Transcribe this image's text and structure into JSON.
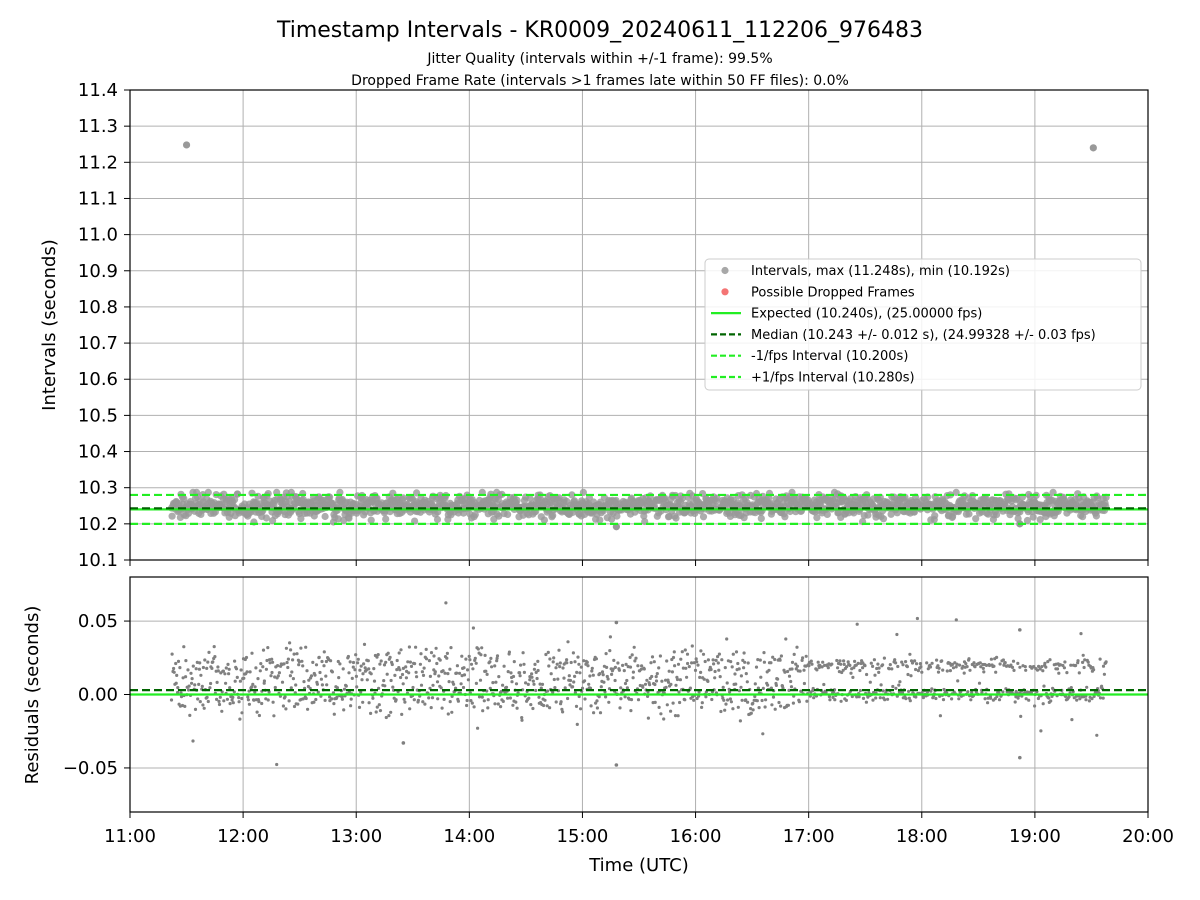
{
  "chart_data": [
    {
      "type": "scatter",
      "title": "Timestamp Intervals - KR0009_20240611_112206_976483",
      "subtitle_lines": [
        "Jitter Quality (intervals within +/-1 frame): 99.5%",
        "Dropped Frame Rate (intervals >1 frames late within 50 FF files): 0.0%"
      ],
      "xlabel": "",
      "ylabel": "Intervals (seconds)",
      "xlim": [
        "11:00",
        "20:00"
      ],
      "ylim": [
        10.1,
        11.4
      ],
      "yticks": [
        10.1,
        10.2,
        10.3,
        10.4,
        10.5,
        10.6,
        10.7,
        10.8,
        10.9,
        11.0,
        11.1,
        11.2,
        11.3,
        11.4
      ],
      "ytick_labels": [
        "10.1",
        "10.2",
        "10.3",
        "10.4",
        "10.5",
        "10.6",
        "10.7",
        "10.8",
        "10.9",
        "11.0",
        "11.1",
        "11.2",
        "11.3",
        "11.4"
      ],
      "grid": true,
      "legend_position": "center-right",
      "data_time_range": [
        "11:22",
        "19:38"
      ],
      "interval_band": {
        "center": 10.25,
        "low": 10.2,
        "high": 10.29
      },
      "outliers": [
        {
          "time": "11:30",
          "value": 11.248
        },
        {
          "time": "19:31",
          "value": 11.24
        },
        {
          "time": "15:18",
          "value": 10.192
        },
        {
          "time": "18:52",
          "value": 10.2
        }
      ],
      "series": [
        {
          "name": "Intervals, max (11.248s), min (10.192s)",
          "kind": "scatter",
          "color": "#999999"
        },
        {
          "name": "Possible Dropped Frames",
          "kind": "scatter",
          "color": "#f25c5c",
          "values": []
        },
        {
          "name": "Expected (10.240s), (25.00000 fps)",
          "kind": "hline",
          "value": 10.24,
          "color": "#22ee22",
          "style": "solid"
        },
        {
          "name": "Median (10.243 +/- 0.012 s), (24.99328 +/- 0.03 fps)",
          "kind": "hline",
          "value": 10.243,
          "color": "#006400",
          "style": "dashed"
        },
        {
          "name": "-1/fps Interval (10.200s)",
          "kind": "hline",
          "value": 10.2,
          "color": "#22ee22",
          "style": "dashed"
        },
        {
          "name": "+1/fps Interval (10.280s)",
          "kind": "hline",
          "value": 10.28,
          "color": "#22ee22",
          "style": "dashed"
        }
      ]
    },
    {
      "type": "scatter",
      "xlabel": "Time (UTC)",
      "ylabel": "Residuals (seconds)",
      "xlim": [
        "11:00",
        "20:00"
      ],
      "ylim": [
        -0.08,
        0.08
      ],
      "xticks": [
        "11:00",
        "12:00",
        "13:00",
        "14:00",
        "15:00",
        "16:00",
        "17:00",
        "18:00",
        "19:00",
        "20:00"
      ],
      "yticks": [
        0.05,
        0.0,
        -0.05
      ],
      "ytick_labels": [
        "0.05",
        "0.00",
        "−0.05"
      ],
      "grid": true,
      "data_time_range": [
        "11:22",
        "19:38"
      ],
      "residual_levels": [
        0.0,
        0.02
      ],
      "residual_spread": 0.012,
      "outliers": [
        {
          "time": "15:18",
          "value": -0.048
        },
        {
          "time": "15:18",
          "value": 0.049
        },
        {
          "time": "18:52",
          "value": -0.043
        },
        {
          "time": "18:52",
          "value": 0.044
        },
        {
          "time": "13:25",
          "value": -0.033
        }
      ],
      "series": [
        {
          "name": "",
          "kind": "scatter",
          "color": "#808080"
        },
        {
          "name": "",
          "kind": "hline",
          "value": 0.0,
          "color": "#22ee22",
          "style": "solid"
        },
        {
          "name": "",
          "kind": "hline",
          "value": 0.003,
          "color": "#006400",
          "style": "dashed"
        }
      ]
    }
  ]
}
